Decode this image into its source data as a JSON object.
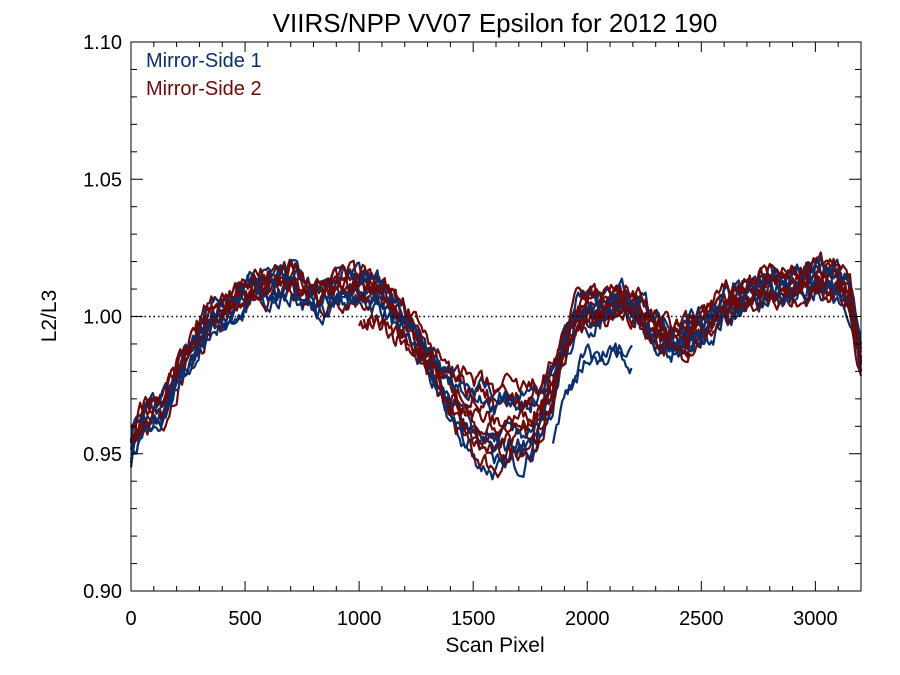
{
  "chart_data": {
    "type": "line",
    "title": "VIIRS/NPP VV07 Epsilon for 2012 190",
    "xlabel": "Scan Pixel",
    "ylabel": "L2/L3",
    "xlim": [
      0,
      3200
    ],
    "ylim": [
      0.9,
      1.1
    ],
    "xticks": [
      0,
      500,
      1000,
      1500,
      2000,
      2500,
      3000
    ],
    "xtick_labels": [
      "0",
      "500",
      "1000",
      "1500",
      "2000",
      "2500",
      "3000"
    ],
    "yticks": [
      0.9,
      0.95,
      1.0,
      1.05,
      1.1
    ],
    "ytick_labels": [
      "0.90",
      "0.95",
      "1.00",
      "1.05",
      "1.10"
    ],
    "reference_line": {
      "y": 1.0,
      "style": "dotted"
    },
    "grid": false,
    "legend_position": "top-left",
    "series": [
      {
        "name": "Mirror-Side 1",
        "color": "#0b2f6b"
      },
      {
        "name": "Mirror-Side 2",
        "color": "#6b0a0a"
      }
    ],
    "profile_mean": {
      "x": [
        0,
        50,
        100,
        150,
        200,
        250,
        300,
        350,
        400,
        450,
        500,
        550,
        600,
        650,
        700,
        750,
        800,
        850,
        900,
        950,
        1000,
        1050,
        1100,
        1150,
        1200,
        1250,
        1300,
        1350,
        1400,
        1450,
        1500,
        1550,
        1600,
        1650,
        1700,
        1750,
        1800,
        1850,
        1900,
        1950,
        2000,
        2050,
        2100,
        2150,
        2200,
        2250,
        2300,
        2350,
        2400,
        2450,
        2500,
        2550,
        2600,
        2650,
        2700,
        2750,
        2800,
        2850,
        2900,
        2950,
        3000,
        3050,
        3100,
        3150,
        3200
      ],
      "y": [
        0.953,
        0.962,
        0.966,
        0.968,
        0.978,
        0.985,
        0.992,
        0.999,
        1.002,
        1.004,
        1.008,
        1.01,
        1.011,
        1.012,
        1.013,
        1.01,
        1.006,
        1.008,
        1.01,
        1.011,
        1.011,
        1.01,
        1.008,
        1.003,
        0.998,
        0.992,
        0.985,
        0.978,
        0.972,
        0.967,
        0.962,
        0.96,
        0.958,
        0.96,
        0.96,
        0.962,
        0.966,
        0.975,
        0.99,
        1.0,
        1.003,
        1.002,
        1.004,
        1.006,
        1.003,
        1.0,
        0.995,
        0.992,
        0.99,
        0.994,
        0.996,
        0.999,
        1.004,
        1.006,
        1.008,
        1.01,
        1.012,
        1.01,
        1.011,
        1.012,
        1.014,
        1.014,
        1.013,
        1.008,
        0.983
      ]
    }
  }
}
